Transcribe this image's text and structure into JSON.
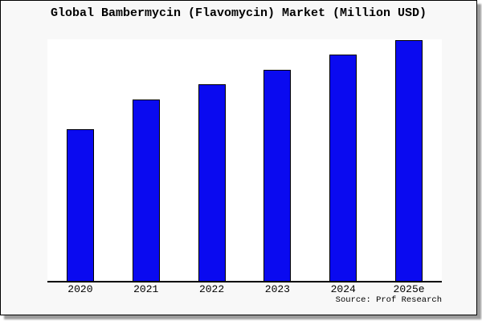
{
  "title": "Global Bambermycin (Flavomycin) Market (Million USD)",
  "source_note": "Source: Prof Research",
  "colors": {
    "bar_fill": "#0a0af0",
    "bar_edge": "#000000",
    "axis_line": "#000000",
    "card_background": "#f8f8f8",
    "plot_background": "#ffffff",
    "border": "#000000",
    "shadow": "#9c9c9c",
    "text": "#000000"
  },
  "chart_data": {
    "type": "bar",
    "title": "Global Bambermycin (Flavomycin) Market (Million USD)",
    "categories": [
      "2020",
      "2021",
      "2022",
      "2023",
      "2024",
      "2025e"
    ],
    "values": [
      189,
      226,
      245,
      263,
      282,
      300
    ],
    "units": "relative (no y-axis value labels shown in figure)",
    "xlabel": "",
    "ylabel": "",
    "ylim": [
      0,
      301
    ],
    "grid": false,
    "legend": false,
    "y_axis_visible": false,
    "annotations": [
      "Source: Prof Research"
    ]
  }
}
